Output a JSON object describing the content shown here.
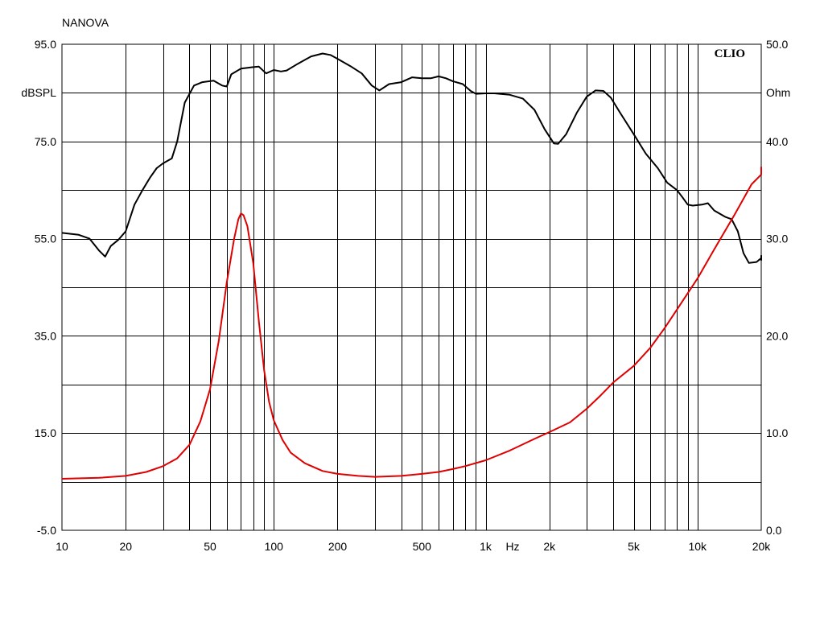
{
  "chart_data": {
    "type": "line",
    "header_label": "NANOVA",
    "watermark": "CLIO",
    "x_axis": {
      "scale": "log",
      "range": [
        10,
        20000
      ],
      "unit_label": "Hz",
      "tick_labels": [
        {
          "value": 10,
          "label": "10"
        },
        {
          "value": 20,
          "label": "20"
        },
        {
          "value": 50,
          "label": "50"
        },
        {
          "value": 100,
          "label": "100"
        },
        {
          "value": 200,
          "label": "200"
        },
        {
          "value": 500,
          "label": "500"
        },
        {
          "value": 1000,
          "label": "1k"
        },
        {
          "value": 2000,
          "label": "2k"
        },
        {
          "value": 5000,
          "label": "5k"
        },
        {
          "value": 10000,
          "label": "10k"
        },
        {
          "value": 20000,
          "label": "20k"
        }
      ]
    },
    "y_left": {
      "label": "dBSPL",
      "range": [
        -5,
        95
      ],
      "tick_labels": [
        {
          "value": 95,
          "label": "95.0"
        },
        {
          "value": 75,
          "label": "75.0"
        },
        {
          "value": 55,
          "label": "55.0"
        },
        {
          "value": 35,
          "label": "35.0"
        },
        {
          "value": 15,
          "label": "15.0"
        },
        {
          "value": -5,
          "label": "-5.0"
        }
      ]
    },
    "y_right": {
      "label": "Ohm",
      "range": [
        0,
        50
      ],
      "tick_labels": [
        {
          "value": 50,
          "label": "50.0"
        },
        {
          "value": 40,
          "label": "40.0"
        },
        {
          "value": 30,
          "label": "30.0"
        },
        {
          "value": 20,
          "label": "20.0"
        },
        {
          "value": 10,
          "label": "10.0"
        },
        {
          "value": 0,
          "label": "0.0"
        }
      ]
    },
    "grid": true,
    "series": [
      {
        "axis": "left",
        "color": "#000000",
        "points": [
          [
            10,
            56.2
          ],
          [
            12,
            55.8
          ],
          [
            13.5,
            55.0
          ],
          [
            15,
            52.5
          ],
          [
            16,
            51.3
          ],
          [
            17,
            53.5
          ],
          [
            18.5,
            54.8
          ],
          [
            20,
            56.5
          ],
          [
            22,
            62
          ],
          [
            24,
            65
          ],
          [
            26,
            67.5
          ],
          [
            28,
            69.5
          ],
          [
            30,
            70.5
          ],
          [
            33,
            71.5
          ],
          [
            35,
            75
          ],
          [
            38,
            83
          ],
          [
            42,
            86.5
          ],
          [
            46,
            87.2
          ],
          [
            52,
            87.5
          ],
          [
            57,
            86.5
          ],
          [
            60,
            86.3
          ],
          [
            63,
            88.8
          ],
          [
            70,
            90
          ],
          [
            80,
            90.3
          ],
          [
            85,
            90.4
          ],
          [
            92,
            89.0
          ],
          [
            100,
            89.7
          ],
          [
            108,
            89.4
          ],
          [
            115,
            89.6
          ],
          [
            130,
            91
          ],
          [
            150,
            92.5
          ],
          [
            170,
            93.1
          ],
          [
            185,
            92.8
          ],
          [
            200,
            92
          ],
          [
            230,
            90.5
          ],
          [
            260,
            89
          ],
          [
            290,
            86.5
          ],
          [
            315,
            85.5
          ],
          [
            350,
            86.8
          ],
          [
            400,
            87.2
          ],
          [
            450,
            88.2
          ],
          [
            500,
            88.0
          ],
          [
            550,
            88.0
          ],
          [
            600,
            88.4
          ],
          [
            650,
            88.0
          ],
          [
            700,
            87.4
          ],
          [
            780,
            86.8
          ],
          [
            850,
            85.4
          ],
          [
            900,
            84.8
          ],
          [
            1000,
            84.9
          ],
          [
            1100,
            84.9
          ],
          [
            1300,
            84.6
          ],
          [
            1500,
            83.8
          ],
          [
            1700,
            81.5
          ],
          [
            1900,
            77.5
          ],
          [
            2100,
            74.6
          ],
          [
            2200,
            74.5
          ],
          [
            2400,
            76.5
          ],
          [
            2700,
            81
          ],
          [
            3000,
            84.2
          ],
          [
            3300,
            85.5
          ],
          [
            3600,
            85.4
          ],
          [
            3900,
            84.0
          ],
          [
            4300,
            81
          ],
          [
            5000,
            76.5
          ],
          [
            5700,
            72.5
          ],
          [
            6500,
            69.5
          ],
          [
            7200,
            66.5
          ],
          [
            8000,
            65
          ],
          [
            8500,
            63.5
          ],
          [
            9000,
            62
          ],
          [
            9500,
            61.8
          ],
          [
            10500,
            62
          ],
          [
            11200,
            62.3
          ],
          [
            12000,
            60.8
          ],
          [
            13500,
            59.5
          ],
          [
            14500,
            59
          ],
          [
            15500,
            56.5
          ],
          [
            16500,
            52
          ],
          [
            17500,
            50
          ],
          [
            19000,
            50.2
          ],
          [
            20000,
            51
          ],
          [
            21000,
            51.5
          ],
          [
            22000,
            50.5
          ]
        ]
      },
      {
        "axis": "right",
        "color": "#e00000",
        "points": [
          [
            10,
            5.3
          ],
          [
            15,
            5.4
          ],
          [
            20,
            5.6
          ],
          [
            25,
            6.0
          ],
          [
            30,
            6.6
          ],
          [
            35,
            7.4
          ],
          [
            40,
            8.8
          ],
          [
            45,
            11.2
          ],
          [
            50,
            14.5
          ],
          [
            55,
            19.5
          ],
          [
            60,
            25.5
          ],
          [
            65,
            30
          ],
          [
            68,
            32
          ],
          [
            70,
            32.6
          ],
          [
            72,
            32.4
          ],
          [
            75,
            31.3
          ],
          [
            80,
            27.5
          ],
          [
            85,
            21.5
          ],
          [
            90,
            16.5
          ],
          [
            95,
            13.2
          ],
          [
            100,
            11.3
          ],
          [
            110,
            9.3
          ],
          [
            120,
            8.0
          ],
          [
            140,
            6.9
          ],
          [
            170,
            6.1
          ],
          [
            200,
            5.8
          ],
          [
            250,
            5.6
          ],
          [
            300,
            5.5
          ],
          [
            400,
            5.6
          ],
          [
            500,
            5.8
          ],
          [
            600,
            6.0
          ],
          [
            700,
            6.3
          ],
          [
            800,
            6.6
          ],
          [
            1000,
            7.2
          ],
          [
            1300,
            8.2
          ],
          [
            1700,
            9.4
          ],
          [
            2000,
            10.1
          ],
          [
            2500,
            11.1
          ],
          [
            3000,
            12.5
          ],
          [
            3500,
            13.9
          ],
          [
            4000,
            15.2
          ],
          [
            5000,
            16.9
          ],
          [
            6000,
            18.8
          ],
          [
            7000,
            20.8
          ],
          [
            8000,
            22.7
          ],
          [
            10000,
            25.9
          ],
          [
            12000,
            28.9
          ],
          [
            15000,
            32.5
          ],
          [
            18000,
            35.6
          ],
          [
            20000,
            36.6
          ],
          [
            22000,
            37.4
          ]
        ]
      }
    ]
  }
}
